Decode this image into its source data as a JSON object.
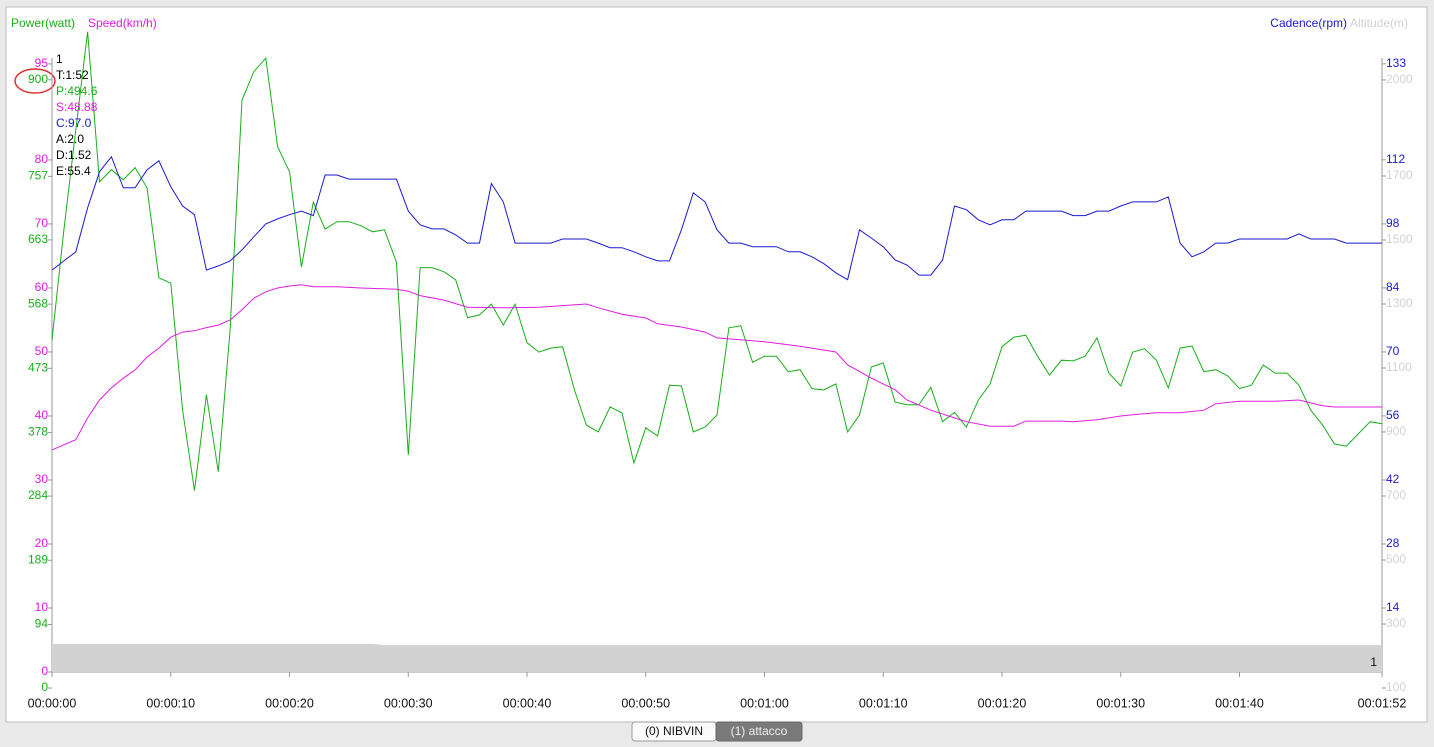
{
  "chart_data": {
    "type": "line",
    "power_title": "Power(watt)",
    "speed_title": "Speed(km/h)",
    "cadence_title": "Cadence(rpm)",
    "altitude_title": "Altitude(m)",
    "x": [
      0,
      1,
      2,
      3,
      4,
      5,
      6,
      7,
      8,
      9,
      10,
      11,
      12,
      13,
      14,
      15,
      16,
      17,
      18,
      19,
      20,
      21,
      22,
      23,
      24,
      25,
      26,
      27,
      28,
      29,
      30,
      31,
      32,
      33,
      34,
      35,
      36,
      37,
      38,
      39,
      40,
      41,
      42,
      43,
      44,
      45,
      46,
      47,
      48,
      49,
      50,
      51,
      52,
      53,
      54,
      55,
      56,
      57,
      58,
      59,
      60,
      61,
      62,
      63,
      64,
      65,
      66,
      67,
      68,
      69,
      70,
      71,
      72,
      73,
      74,
      75,
      76,
      77,
      78,
      79,
      80,
      81,
      82,
      83,
      84,
      85,
      86,
      87,
      88,
      89,
      90,
      91,
      92,
      93,
      94,
      95,
      96,
      97,
      98,
      99,
      100,
      101,
      102,
      103,
      104,
      105,
      106,
      107,
      108,
      109,
      110,
      111,
      112
    ],
    "xlim": [
      0,
      112
    ],
    "xticks": [
      {
        "value": 0,
        "label": "00:00:00"
      },
      {
        "value": 10,
        "label": "00:00:10"
      },
      {
        "value": 20,
        "label": "00:00:20"
      },
      {
        "value": 30,
        "label": "00:00:30"
      },
      {
        "value": 40,
        "label": "00:00:40"
      },
      {
        "value": 50,
        "label": "00:00:50"
      },
      {
        "value": 60,
        "label": "00:01:00"
      },
      {
        "value": 70,
        "label": "00:01:10"
      },
      {
        "value": 80,
        "label": "00:01:20"
      },
      {
        "value": 90,
        "label": "00:01:30"
      },
      {
        "value": 100,
        "label": "00:01:40"
      },
      {
        "value": 112,
        "label": "00:01:52"
      }
    ],
    "ylim": [
      23.7,
      973.6
    ],
    "yticks": [
      0,
      94,
      189,
      284,
      378,
      473,
      568,
      663,
      757,
      900
    ],
    "y2lim": [
      0,
      140.4
    ],
    "y2ticks": [
      14,
      28,
      42,
      56,
      70,
      84,
      98,
      112,
      133
    ],
    "y3lim": [
      0,
      100.3
    ],
    "y3ticks": [
      0,
      10,
      20,
      30,
      40,
      50,
      60,
      70,
      80,
      95
    ],
    "y4lim": [
      150,
      2156
    ],
    "y4ticks": [
      100,
      300,
      500,
      700,
      900,
      1100,
      1300,
      1500,
      1700,
      2000
    ],
    "series": [
      {
        "name": "Altitude",
        "color": "#d2d2d2",
        "axis": "y4",
        "x": [
          0,
          27,
          28,
          112
        ],
        "values": [
          238,
          238,
          234,
          234
        ]
      },
      {
        "name": "Power",
        "color": "#1aae1a",
        "axis": "y",
        "values": [
          515,
          678,
          826,
          971,
          749,
          767,
          752,
          770,
          740,
          607,
          599,
          411,
          292,
          434,
          320,
          530,
          870,
          912,
          932,
          801,
          764,
          623,
          719,
          679,
          690,
          690,
          684,
          675,
          678,
          630,
          345,
          622,
          622,
          616,
          604,
          548,
          552,
          568,
          537,
          568,
          511,
          497,
          503,
          505,
          441,
          389,
          379,
          416,
          407,
          333,
          385,
          373,
          448,
          447,
          379,
          386,
          404,
          533,
          536,
          482,
          491,
          491,
          468,
          471,
          443,
          441,
          450,
          379,
          404,
          475,
          481,
          423,
          419,
          419,
          445,
          394,
          408,
          386,
          426,
          450,
          505,
          519,
          522,
          491,
          463,
          485,
          484,
          491,
          518,
          466,
          447,
          497,
          502,
          485,
          444,
          503,
          506,
          468,
          471,
          462,
          443,
          448,
          478,
          466,
          466,
          448,
          411,
          389,
          361,
          358,
          376,
          394,
          391
        ]
      },
      {
        "name": "Speed",
        "color": "#e01be0",
        "axis": "y3",
        "x": [
          0,
          1,
          2,
          3,
          4,
          5,
          6,
          7,
          8,
          9,
          10,
          11,
          12,
          13,
          14,
          15,
          16,
          17,
          18,
          19,
          20,
          21,
          22,
          24,
          26,
          29,
          30,
          31,
          33,
          35,
          38,
          41,
          45,
          46,
          48,
          50,
          51,
          53,
          55,
          56,
          60,
          63,
          66,
          67,
          69,
          71,
          72,
          74,
          76,
          77,
          79,
          81,
          82,
          85,
          86,
          88,
          90,
          91,
          93,
          95,
          97,
          98,
          100,
          103,
          105,
          107,
          108,
          112
        ],
        "values": [
          34.7,
          35.5,
          36.3,
          39.7,
          42.5,
          44.4,
          45.9,
          47.2,
          49.2,
          50.6,
          52.3,
          53.1,
          53.3,
          53.8,
          54.2,
          55.0,
          56.6,
          58.4,
          59.4,
          60.0,
          60.3,
          60.5,
          60.2,
          60.2,
          60.0,
          59.8,
          59.5,
          58.8,
          58.1,
          57.0,
          56.9,
          57.0,
          57.5,
          56.9,
          55.9,
          55.3,
          54.4,
          53.9,
          53.1,
          52.2,
          51.6,
          50.9,
          50.0,
          48.0,
          45.9,
          44.1,
          42.5,
          40.9,
          39.7,
          39.1,
          38.4,
          38.4,
          39.2,
          39.2,
          39.1,
          39.4,
          40.0,
          40.2,
          40.5,
          40.5,
          40.9,
          41.9,
          42.3,
          42.3,
          42.5,
          41.6,
          41.4,
          41.4
        ]
      },
      {
        "name": "Cadence",
        "color": "#1a1ad0",
        "axis": "y2",
        "values": [
          87.9,
          89.9,
          91.9,
          101.5,
          109.4,
          112.7,
          105.9,
          105.9,
          109.8,
          111.8,
          106.1,
          101.9,
          100.0,
          87.9,
          88.8,
          89.9,
          92.3,
          95.2,
          98.0,
          99.1,
          100.0,
          100.8,
          99.8,
          108.7,
          108.7,
          107.8,
          107.8,
          107.8,
          107.8,
          107.8,
          100.8,
          97.8,
          96.9,
          96.9,
          95.6,
          93.8,
          93.8,
          106.8,
          102.8,
          93.8,
          93.8,
          93.8,
          93.8,
          94.7,
          94.7,
          94.7,
          93.8,
          92.8,
          92.8,
          91.9,
          90.8,
          89.9,
          89.9,
          96.7,
          104.8,
          102.8,
          96.7,
          93.8,
          93.8,
          93.0,
          93.0,
          93.0,
          91.9,
          91.9,
          90.8,
          89.3,
          87.3,
          85.8,
          96.7,
          94.9,
          93.0,
          90.1,
          89.0,
          86.8,
          86.8,
          90.1,
          101.9,
          101.1,
          98.9,
          97.8,
          98.9,
          98.9,
          100.8,
          100.8,
          100.8,
          100.8,
          99.8,
          99.8,
          100.8,
          100.8,
          101.9,
          102.8,
          102.8,
          102.8,
          103.9,
          93.8,
          90.8,
          91.9,
          93.8,
          93.8,
          94.7,
          94.7,
          94.7,
          94.7,
          94.7,
          95.8,
          94.7,
          94.7,
          94.7,
          93.8,
          93.8,
          93.8,
          93.8
        ]
      }
    ],
    "tooltip": [
      {
        "text": "1",
        "color": "#000000"
      },
      {
        "text": "T:1:52",
        "color": "#000000"
      },
      {
        "text": "P:494.6",
        "color": "#1aae1a"
      },
      {
        "text": "S:48.88",
        "color": "#e01be0"
      },
      {
        "text": "C:97.0",
        "color": "#1a1ad0"
      },
      {
        "text": "A:2.0",
        "color": "#000000"
      },
      {
        "text": "D:1.52",
        "color": "#000000"
      },
      {
        "text": "E:55.4",
        "color": "#000000"
      }
    ],
    "annotations": [
      "1"
    ],
    "grid": false
  },
  "tabs": [
    "(0) NIBVIN",
    "(1) attacco"
  ]
}
